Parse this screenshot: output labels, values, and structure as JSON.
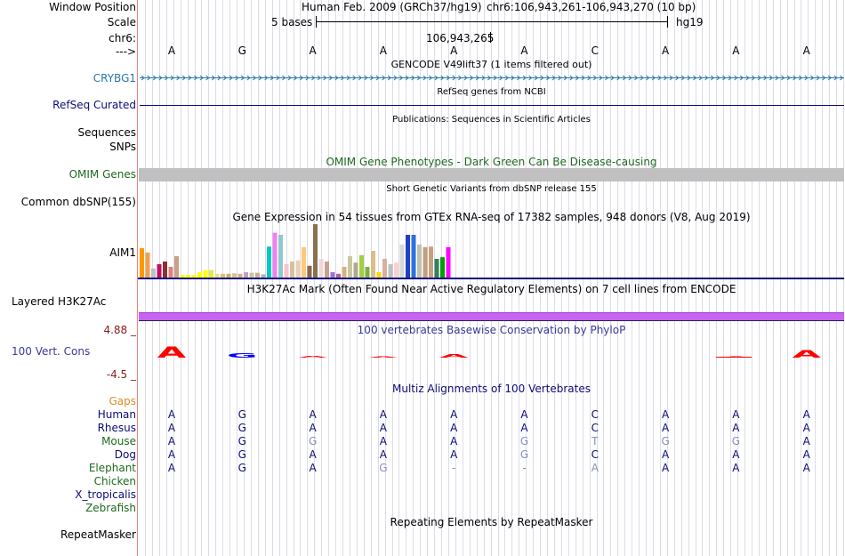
{
  "ruler": {
    "labels": {
      "window_position": "Window Position",
      "scale": "Scale",
      "chr": "chr6:",
      "arrow": "--->"
    },
    "assembly": "Human Feb. 2009 (GRCh37/hg19)",
    "position": "chr6:106,943,261-106,943,270 (10 bp)",
    "scale_text": "5 bases",
    "db": "hg19",
    "coordinate": "106,943,265",
    "bases": [
      "A",
      "G",
      "A",
      "A",
      "A",
      "A",
      "C",
      "A",
      "A",
      "A"
    ]
  },
  "tracks": {
    "gencode": {
      "title": "GENCODE V49lift37 (1 items filtered out)",
      "label": "CRYBG1",
      "color": "#2878a8"
    },
    "refseq": {
      "title": "RefSeq genes from NCBI",
      "label": "RefSeq Curated",
      "color": "#0c0c78"
    },
    "publications": {
      "title": "Publications: Sequences in Scientific Articles",
      "label_line1": "Sequences",
      "label_line2": "SNPs"
    },
    "omim": {
      "title": "OMIM Gene Phenotypes - Dark Green Can Be Disease-causing",
      "label": "OMIM Genes",
      "color": "#1e6a1e"
    },
    "dbsnp": {
      "title": "Short Genetic Variants from dbSNP release 155",
      "label": "Common dbSNP(155)"
    },
    "gtex": {
      "title": "Gene Expression in 54 tissues from GTEx RNA-seq of 17382 samples, 948 donors (V8, Aug 2019)",
      "label": "AIM1",
      "bar_values": [
        0.55,
        0.47,
        0.17,
        0.25,
        0.3,
        0.2,
        0.4,
        0.05,
        0.05,
        0.05,
        0.1,
        0.14,
        0.14,
        0.07,
        0.07,
        0.07,
        0.08,
        0.07,
        0.1,
        0.09,
        0.09,
        0.06,
        0.58,
        0.84,
        0.8,
        0.25,
        0.3,
        0.32,
        0.57,
        0.22,
        1.0,
        0.35,
        0.3,
        0.1,
        0.07,
        0.2,
        0.4,
        0.28,
        0.42,
        0.2,
        0.5,
        0.1,
        0.35,
        0.25,
        0.28,
        0.62,
        0.8,
        0.8,
        0.62,
        0.57,
        0.58,
        0.35,
        0.38,
        0.57
      ],
      "bar_colors": [
        "#ff9900",
        "#f0a050",
        "#c0c0c0",
        "#c01060",
        "#8b3030",
        "#e08080",
        "#c8a088",
        "#ffff00",
        "#ffff00",
        "#ffff00",
        "#ffff00",
        "#ffff00",
        "#e8e840",
        "#e0e080",
        "#d8c080",
        "#c8b060",
        "#e0c090",
        "#d0b080",
        "#c0a0c0",
        "#d0c0a0",
        "#c0b090",
        "#b0b0b0",
        "#00c8c8",
        "#ee82ee",
        "#90c8d0",
        "#ffc0cb",
        "#d8c0a0",
        "#e8d0b8",
        "#ffc878",
        "#8b6848",
        "#8b7050",
        "#eed8d8",
        "#c8a090",
        "#a070c8",
        "#b060a0",
        "#d8b080",
        "#c8c8a0",
        "#b0a890",
        "#a0d040",
        "#80b040",
        "#d8c088",
        "#ffd700",
        "#d8b0a0",
        "#c0c0c0",
        "#ffd0d0",
        "#d8d8d8",
        "#2040c8",
        "#3070e0",
        "#c0c0b0",
        "#c0a080",
        "#c8a080",
        "#308060",
        "#00a000",
        "#ff00ff"
      ]
    },
    "h3k27ac": {
      "title": "H3K27Ac Mark (Often Found Near Active Regulatory Elements) on 7 cell lines from ENCODE",
      "label": "Layered H3K27Ac",
      "color": "#c864f0"
    },
    "phylop": {
      "title": "100 vertebrates Basewise Conservation by PhyloP",
      "label": "100 Vert. Cons",
      "max_label": "4.88 _",
      "min_label": "-4.5 _",
      "y_max": 4.88,
      "y_min": -4.5,
      "scores": [
        2.4,
        1.0,
        0.35,
        0.25,
        0.8,
        0.0,
        0.0,
        0.0,
        0.2,
        1.6
      ]
    },
    "multiz": {
      "title": "Multiz Alignments of 100 Vertebrates",
      "gaps_label": "Gaps",
      "species": [
        {
          "name": "Human",
          "color": "#0c0c78",
          "bases": [
            "A",
            "G",
            "A",
            "A",
            "A",
            "A",
            "C",
            "A",
            "A",
            "A"
          ]
        },
        {
          "name": "Rhesus",
          "color": "#0c0c78",
          "bases": [
            "A",
            "G",
            "A",
            "A",
            "A",
            "A",
            "C",
            "A",
            "A",
            "A"
          ]
        },
        {
          "name": "Mouse",
          "color": "#1e6a1e",
          "bases": [
            "A",
            "G",
            "G",
            "A",
            "A",
            "G",
            "T",
            "G",
            "G",
            "A"
          ]
        },
        {
          "name": "Dog",
          "color": "#0c0c78",
          "bases": [
            "A",
            "G",
            "A",
            "A",
            "A",
            "G",
            "C",
            "A",
            "A",
            "A"
          ]
        },
        {
          "name": "Elephant",
          "color": "#1e6a1e",
          "bases": [
            "A",
            "G",
            "A",
            "G",
            "-",
            "-",
            "A",
            "A",
            "A",
            "A"
          ]
        },
        {
          "name": "Chicken",
          "color": "#1e6a1e",
          "bases": []
        },
        {
          "name": "X_tropicalis",
          "color": "#0c0c78",
          "bases": []
        },
        {
          "name": "Zebrafish",
          "color": "#1e6a1e",
          "bases": []
        }
      ],
      "mismatch_flags": [
        [
          false,
          false,
          false,
          false,
          false,
          false,
          false,
          false,
          false,
          false
        ],
        [
          false,
          false,
          false,
          false,
          false,
          false,
          false,
          false,
          false,
          false
        ],
        [
          false,
          false,
          true,
          false,
          false,
          true,
          true,
          true,
          true,
          false
        ],
        [
          false,
          false,
          false,
          false,
          false,
          true,
          false,
          false,
          false,
          false
        ],
        [
          false,
          false,
          false,
          true,
          true,
          true,
          true,
          false,
          false,
          false
        ]
      ]
    },
    "rmsk": {
      "title": "Repeating Elements by RepeatMasker",
      "label": "RepeatMasker"
    }
  },
  "colors": {
    "gaps_label": "#e08a1e",
    "phylop_positive": "#ff0000",
    "phylop_G": "#0000ff",
    "omim_band": "#c0c0c0",
    "mismatch": "#8890b8",
    "crimson": "#8b1a1a"
  }
}
